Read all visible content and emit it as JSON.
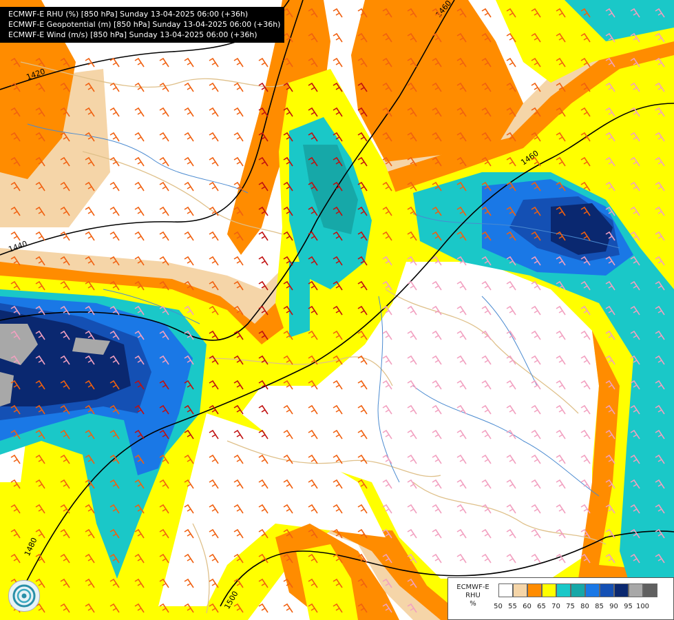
{
  "header": {
    "lines": [
      "ECMWF-E RHU (%) [850 hPa] Sunday 13-04-2025 06:00 (+36h)",
      "ECMWF-E Geopotential (m) [850 hPa] Sunday 13-04-2025 06:00 (+36h)",
      "ECMWF-E Wind (m/s) [850 hPa] Sunday 13-04-2025 06:00 (+36h)"
    ]
  },
  "contours": {
    "labels": [
      "1420",
      "1440",
      "1460",
      "1460",
      "1480",
      "1500"
    ]
  },
  "legend": {
    "name_lines": [
      "ECMWF-E",
      "RHU",
      "%"
    ],
    "colors": [
      "#ffffff",
      "#f5d5a8",
      "#ff8c00",
      "#ffff00",
      "#1ac8c8",
      "#16a8a8",
      "#1a78e6",
      "#1450b4",
      "#0a2870",
      "#a8a8a8",
      "#606060"
    ],
    "ticks": [
      "50",
      "55",
      "60",
      "65",
      "70",
      "75",
      "80",
      "85",
      "90",
      "95",
      "100"
    ]
  },
  "logo": {
    "icon": "ecmwf-swirl-logo"
  }
}
